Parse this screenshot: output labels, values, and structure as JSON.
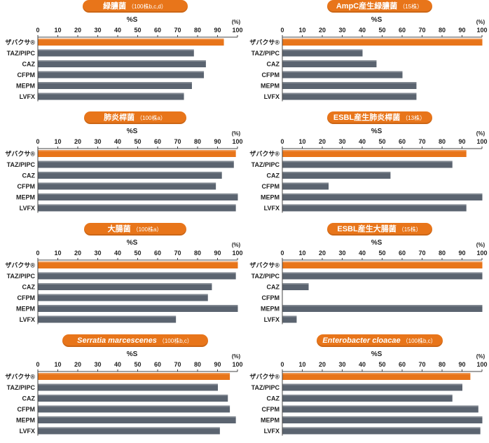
{
  "colors": {
    "title_bg": "#e8751a",
    "highlight_bar": "#e8751a",
    "bar": "#5b6470",
    "axis": "#444444",
    "text": "#222222"
  },
  "chart_data": [
    {
      "type": "bar",
      "orientation": "horizontal",
      "title": "緑膿菌",
      "title_note": "（100株b,c,d）",
      "xlabel": "%S",
      "unit_label": "(%)",
      "xlim": [
        0,
        100
      ],
      "ticks": [
        0,
        10,
        20,
        30,
        40,
        50,
        60,
        70,
        80,
        90,
        100
      ],
      "categories": [
        "ザバクサ®",
        "TAZ/PIPC",
        "CAZ",
        "CFPM",
        "MEPM",
        "LVFX"
      ],
      "values": [
        93,
        78,
        84,
        83,
        77,
        73
      ],
      "highlight_index": 0
    },
    {
      "type": "bar",
      "orientation": "horizontal",
      "title": "AmpC産生緑膿菌",
      "title_note": "（15株）",
      "xlabel": "%S",
      "unit_label": "(%)",
      "xlim": [
        0,
        100
      ],
      "ticks": [
        0,
        10,
        20,
        30,
        40,
        50,
        60,
        70,
        80,
        90,
        100
      ],
      "categories": [
        "ザバクサ®",
        "TAZ/PIPC",
        "CAZ",
        "CFPM",
        "MEPM",
        "LVFX"
      ],
      "values": [
        100,
        40,
        47,
        60,
        67,
        67
      ],
      "highlight_index": 0
    },
    {
      "type": "bar",
      "orientation": "horizontal",
      "title": "肺炎桿菌",
      "title_note": "（100株a）",
      "xlabel": "%S",
      "unit_label": "(%)",
      "xlim": [
        0,
        100
      ],
      "ticks": [
        0,
        10,
        20,
        30,
        40,
        50,
        60,
        70,
        80,
        90,
        100
      ],
      "categories": [
        "ザバクサ®",
        "TAZ/PIPC",
        "CAZ",
        "CFPM",
        "MEPM",
        "LVFX"
      ],
      "values": [
        99,
        98,
        92,
        89,
        100,
        99
      ],
      "highlight_index": 0
    },
    {
      "type": "bar",
      "orientation": "horizontal",
      "title": "ESBL産生肺炎桿菌",
      "title_note": "（13株）",
      "xlabel": "%S",
      "unit_label": "(%)",
      "xlim": [
        0,
        100
      ],
      "ticks": [
        0,
        10,
        20,
        30,
        40,
        50,
        60,
        70,
        80,
        90,
        100
      ],
      "categories": [
        "ザバクサ®",
        "TAZ/PIPC",
        "CAZ",
        "CFPM",
        "MEPM",
        "LVFX"
      ],
      "values": [
        92,
        85,
        54,
        23,
        100,
        92
      ],
      "highlight_index": 0
    },
    {
      "type": "bar",
      "orientation": "horizontal",
      "title": "大腸菌",
      "title_note": "（100株a）",
      "xlabel": "%S",
      "unit_label": "(%)",
      "xlim": [
        0,
        100
      ],
      "ticks": [
        0,
        10,
        20,
        30,
        40,
        50,
        60,
        70,
        80,
        90,
        100
      ],
      "categories": [
        "ザバクサ®",
        "TAZ/PIPC",
        "CAZ",
        "CFPM",
        "MEPM",
        "LVFX"
      ],
      "values": [
        100,
        99,
        87,
        85,
        100,
        69
      ],
      "highlight_index": 0
    },
    {
      "type": "bar",
      "orientation": "horizontal",
      "title": "ESBL産生大腸菌",
      "title_note": "（15株）",
      "xlabel": "%S",
      "unit_label": "(%)",
      "xlim": [
        0,
        100
      ],
      "ticks": [
        0,
        10,
        20,
        30,
        40,
        50,
        60,
        70,
        80,
        90,
        100
      ],
      "categories": [
        "ザバクサ®",
        "TAZ/PIPC",
        "CAZ",
        "CFPM",
        "MEPM",
        "LVFX"
      ],
      "values": [
        100,
        100,
        13,
        0,
        100,
        7
      ],
      "highlight_index": 0
    },
    {
      "type": "bar",
      "orientation": "horizontal",
      "title": "Serratia marcescenes",
      "title_note": "（100株b,c）",
      "title_italic": true,
      "xlabel": "%S",
      "unit_label": "(%)",
      "xlim": [
        0,
        100
      ],
      "ticks": [
        0,
        10,
        20,
        30,
        40,
        50,
        60,
        70,
        80,
        90,
        100
      ],
      "categories": [
        "ザバクサ®",
        "TAZ/PIPC",
        "CAZ",
        "CFPM",
        "MEPM",
        "LVFX"
      ],
      "values": [
        96,
        90,
        95,
        96,
        99,
        91
      ],
      "highlight_index": 0
    },
    {
      "type": "bar",
      "orientation": "horizontal",
      "title": "Enterobacter cloacae",
      "title_note": "（100株b,c）",
      "title_italic": true,
      "xlabel": "%S",
      "unit_label": "(%)",
      "xlim": [
        0,
        100
      ],
      "ticks": [
        0,
        10,
        20,
        30,
        40,
        50,
        60,
        70,
        80,
        90,
        100
      ],
      "categories": [
        "ザバクサ®",
        "TAZ/PIPC",
        "CAZ",
        "CFPM",
        "MEPM",
        "LVFX"
      ],
      "values": [
        94,
        90,
        85,
        98,
        100,
        99
      ],
      "highlight_index": 0
    }
  ]
}
